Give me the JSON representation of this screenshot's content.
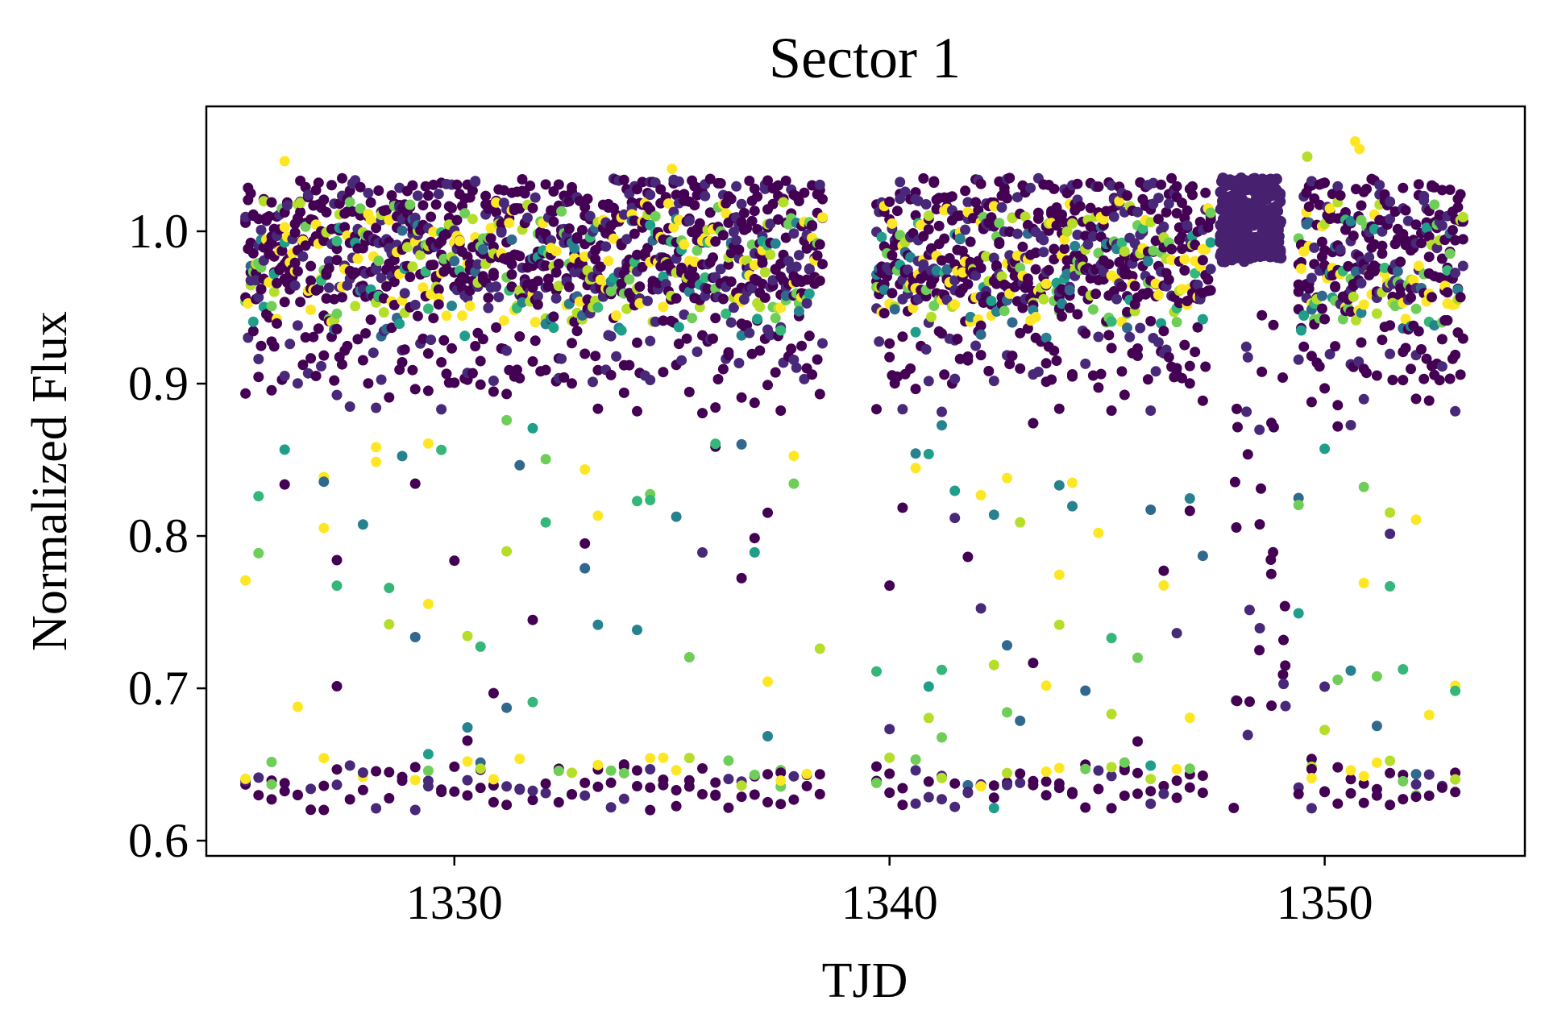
{
  "chart_data": {
    "type": "scatter",
    "title": "Sector 1",
    "xlabel": "TJD",
    "ylabel": "Normalized Flux",
    "xlim": [
      1324.3,
      1354.6
    ],
    "ylim": [
      0.59,
      1.082
    ],
    "xticks": [
      1330,
      1340,
      1350
    ],
    "xtick_labels": [
      "1330",
      "1340",
      "1350"
    ],
    "yticks": [
      0.6,
      0.7,
      0.8,
      0.9,
      1.0
    ],
    "ytick_labels": [
      "0.6",
      "0.7",
      "0.8",
      "0.9",
      "1.0"
    ],
    "grid": false,
    "legend": "none",
    "colormap": "viridis",
    "colors": [
      "#440154",
      "#482878",
      "#3e4989",
      "#31688e",
      "#26828e",
      "#1f9e89",
      "#35b779",
      "#6ece58",
      "#b5de2b",
      "#fde725"
    ],
    "segments": [
      {
        "x_start": 1325.2,
        "x_end": 1338.5
      },
      {
        "x_start": 1339.7,
        "x_end": 1347.4
      },
      {
        "x_start": 1347.5,
        "x_end": 1349.3,
        "dense": true
      },
      {
        "x_start": 1349.4,
        "x_end": 1353.2
      }
    ],
    "continuum_band": [
      0.955,
      1.035
    ],
    "dip_floor": 0.62,
    "point_cadence_days": 0.06,
    "dense_cluster": {
      "x": [
        1347.6,
        1349.0
      ],
      "y": [
        0.98,
        1.035
      ],
      "color": "#482070"
    },
    "outliers": [
      {
        "x": 1326.1,
        "y": 1.046
      },
      {
        "x": 1335.0,
        "y": 1.041
      },
      {
        "x": 1349.6,
        "y": 1.049
      },
      {
        "x": 1350.7,
        "y": 1.059
      },
      {
        "x": 1350.8,
        "y": 1.054
      }
    ]
  }
}
